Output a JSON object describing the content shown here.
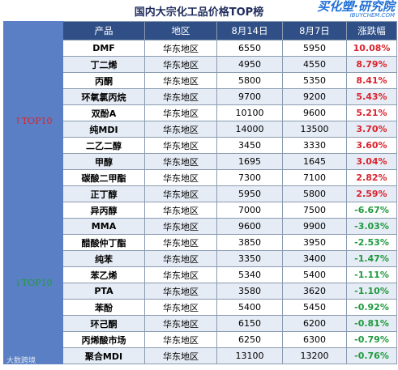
{
  "title": "国内大宗化工品价格TOP榜",
  "logo": {
    "main": "买化塑·研究院",
    "sub": "IBUYCHEM.COM"
  },
  "columns": [
    "产品",
    "地区",
    "8月14日",
    "8月7日",
    "涨跌幅"
  ],
  "groups": {
    "top": {
      "label": "↑TOP10"
    },
    "bottom": {
      "label": "↓TOP10"
    }
  },
  "rows": [
    {
      "product": "DMF",
      "region": "华东地区",
      "aug14": "6550",
      "aug7": "5950",
      "change": "10.08%",
      "dir": "up"
    },
    {
      "product": "丁二烯",
      "region": "华东地区",
      "aug14": "4950",
      "aug7": "4550",
      "change": "8.79%",
      "dir": "up"
    },
    {
      "product": "丙酮",
      "region": "华东地区",
      "aug14": "5800",
      "aug7": "5350",
      "change": "8.41%",
      "dir": "up"
    },
    {
      "product": "环氧氯丙烷",
      "region": "华东地区",
      "aug14": "9700",
      "aug7": "9200",
      "change": "5.43%",
      "dir": "up"
    },
    {
      "product": "双酚A",
      "region": "华东地区",
      "aug14": "10100",
      "aug7": "9600",
      "change": "5.21%",
      "dir": "up"
    },
    {
      "product": "纯MDI",
      "region": "华东地区",
      "aug14": "14000",
      "aug7": "13500",
      "change": "3.70%",
      "dir": "up"
    },
    {
      "product": "二乙二醇",
      "region": "华东地区",
      "aug14": "3450",
      "aug7": "3330",
      "change": "3.60%",
      "dir": "up"
    },
    {
      "product": "甲醇",
      "region": "华东地区",
      "aug14": "1695",
      "aug7": "1645",
      "change": "3.04%",
      "dir": "up"
    },
    {
      "product": "碳酸二甲酯",
      "region": "华东地区",
      "aug14": "7300",
      "aug7": "7100",
      "change": "2.82%",
      "dir": "up"
    },
    {
      "product": "正丁醇",
      "region": "华东地区",
      "aug14": "5950",
      "aug7": "5800",
      "change": "2.59%",
      "dir": "up"
    },
    {
      "product": "异丙醇",
      "region": "华东地区",
      "aug14": "7000",
      "aug7": "7500",
      "change": "-6.67%",
      "dir": "down"
    },
    {
      "product": "MMA",
      "region": "华东地区",
      "aug14": "9600",
      "aug7": "9900",
      "change": "-3.03%",
      "dir": "down"
    },
    {
      "product": "醋酸仲丁酯",
      "region": "华东地区",
      "aug14": "3850",
      "aug7": "3950",
      "change": "-2.53%",
      "dir": "down"
    },
    {
      "product": "纯苯",
      "region": "华东地区",
      "aug14": "3350",
      "aug7": "3400",
      "change": "-1.47%",
      "dir": "down"
    },
    {
      "product": "苯乙烯",
      "region": "华东地区",
      "aug14": "5340",
      "aug7": "5400",
      "change": "-1.11%",
      "dir": "down"
    },
    {
      "product": "PTA",
      "region": "华东地区",
      "aug14": "3580",
      "aug7": "3620",
      "change": "-1.10%",
      "dir": "down"
    },
    {
      "product": "苯酚",
      "region": "华东地区",
      "aug14": "5400",
      "aug7": "5450",
      "change": "-0.92%",
      "dir": "down"
    },
    {
      "product": "环己酮",
      "region": "华东地区",
      "aug14": "6150",
      "aug7": "6200",
      "change": "-0.81%",
      "dir": "down"
    },
    {
      "product": "丙烯酸市场",
      "region": "华东地区",
      "aug14": "6250",
      "aug7": "6300",
      "change": "-0.79%",
      "dir": "down"
    },
    {
      "product": "聚合MDI",
      "region": "华东地区",
      "aug14": "13100",
      "aug7": "13200",
      "change": "-0.76%",
      "dir": "down"
    }
  ],
  "watermark": "大数跨境",
  "colors": {
    "header_bg": "#2f4f86",
    "side_bg": "#5a7fc4",
    "shade": "#e6ecf5",
    "up": "#d9232d",
    "down": "#1e9a3e"
  }
}
